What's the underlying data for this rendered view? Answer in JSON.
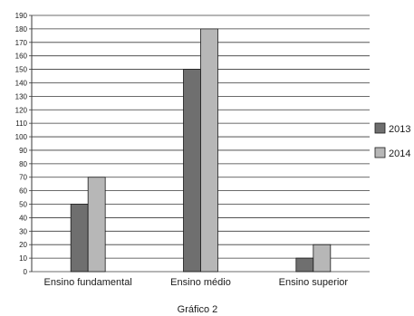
{
  "chart_data": {
    "type": "bar",
    "caption": "Gráfico 2",
    "categories": [
      "Ensino fundamental",
      "Ensino médio",
      "Ensino superior"
    ],
    "series": [
      {
        "name": "2013",
        "values": [
          50,
          150,
          10
        ],
        "color": "#6f6f6f"
      },
      {
        "name": "2014",
        "values": [
          70,
          180,
          20
        ],
        "color": "#b7b7b7"
      }
    ],
    "ylim": [
      0,
      190
    ],
    "ytick_step": 10,
    "grid": true,
    "legend_position": "right"
  }
}
